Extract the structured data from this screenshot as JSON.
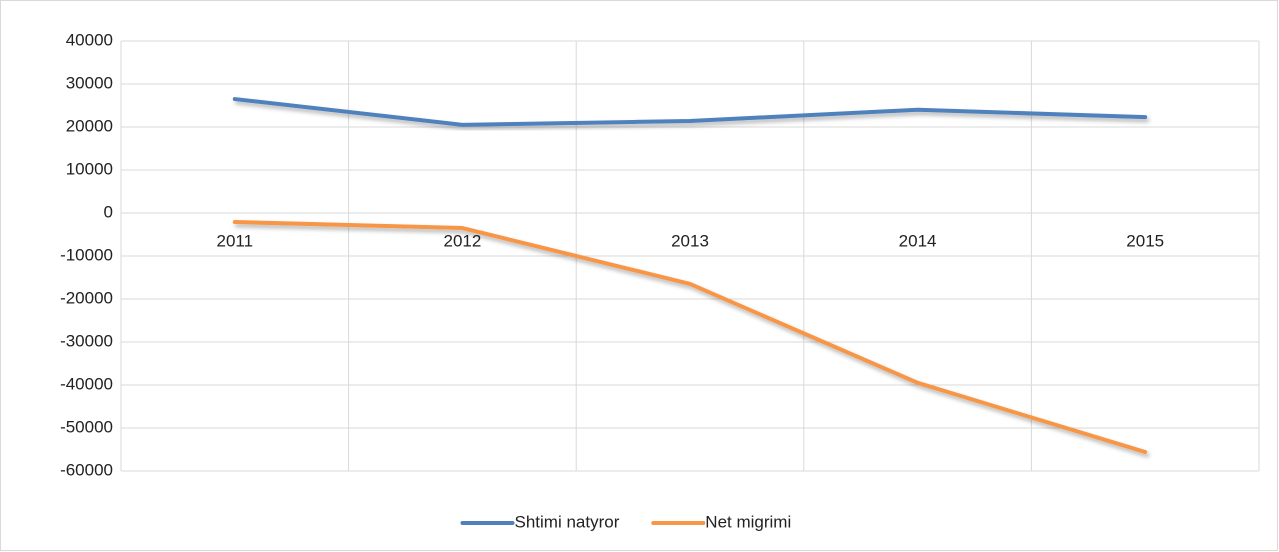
{
  "chart_data": {
    "type": "line",
    "categories": [
      "2011",
      "2012",
      "2013",
      "2014",
      "2015"
    ],
    "series": [
      {
        "name": "Shtimi natyror",
        "color": "#4f81bd",
        "values": [
          26500,
          20500,
          21400,
          24000,
          22300
        ]
      },
      {
        "name": "Net migrimi",
        "color": "#f79646",
        "values": [
          -2100,
          -3500,
          -16500,
          -39500,
          -55600
        ]
      }
    ],
    "ylim": [
      -60000,
      40000
    ],
    "yticks": [
      -60000,
      -50000,
      -40000,
      -30000,
      -20000,
      -10000,
      0,
      10000,
      20000,
      30000,
      40000
    ],
    "grid": true,
    "legend": "bottom"
  }
}
